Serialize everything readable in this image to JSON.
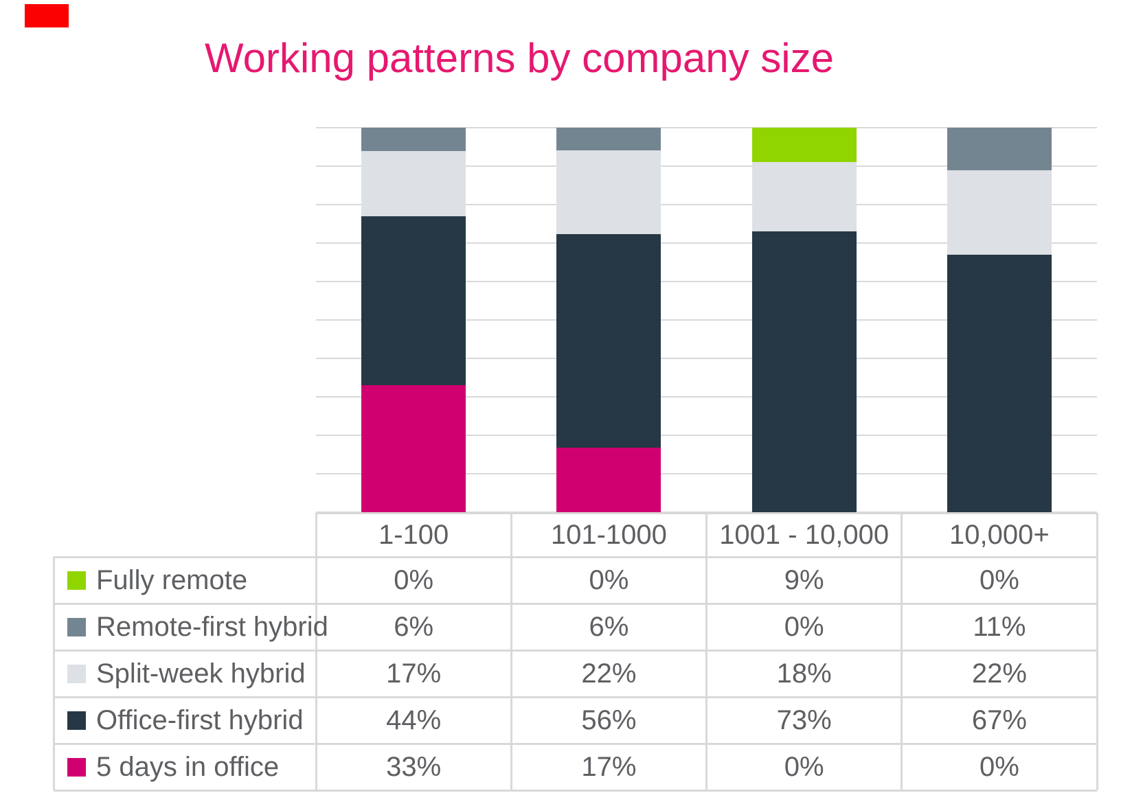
{
  "title": {
    "text": "Working patterns by company size",
    "color": "#e6186f"
  },
  "decoration": {
    "red_marker_color": "#fb0100"
  },
  "chart_data": {
    "type": "bar",
    "stacked": true,
    "title": "Working patterns by company size",
    "unit": "%",
    "categories": [
      "1-100",
      "101-1000",
      "1001 - 10,000",
      "10,000+"
    ],
    "series": [
      {
        "name": "Fully remote",
        "color": "#90d400",
        "values": [
          0,
          0,
          9,
          0
        ],
        "cells": [
          "0%",
          "0%",
          "9%",
          "0%"
        ]
      },
      {
        "name": "Remote-first hybrid",
        "color": "#748592",
        "values": [
          6,
          6,
          0,
          11
        ],
        "cells": [
          "6%",
          "6%",
          "0%",
          "11%"
        ]
      },
      {
        "name": "Split-week hybrid",
        "color": "#dde0e4",
        "values": [
          17,
          22,
          18,
          22
        ],
        "cells": [
          "17%",
          "22%",
          "18%",
          "22%"
        ]
      },
      {
        "name": "Office-first hybrid",
        "color": "#263845",
        "values": [
          44,
          56,
          73,
          67
        ],
        "cells": [
          "44%",
          "56%",
          "73%",
          "67%"
        ]
      },
      {
        "name": "5 days in office",
        "color": "#d00070",
        "values": [
          33,
          17,
          0,
          0
        ],
        "cells": [
          "33%",
          "17%",
          "0%",
          "0%"
        ]
      }
    ],
    "stack_order_bottom_to_top": [
      "5 days in office",
      "Office-first hybrid",
      "Split-week hybrid",
      "Remote-first hybrid",
      "Fully remote"
    ],
    "ylim": [
      0,
      100
    ],
    "gridline_interval": 10,
    "gridline_color": "#d9d9d9",
    "table_border_color": "#d9d9d9",
    "text_color": "#5d5f62",
    "legend_position": "table-left-column",
    "xlabel": "",
    "ylabel": ""
  }
}
